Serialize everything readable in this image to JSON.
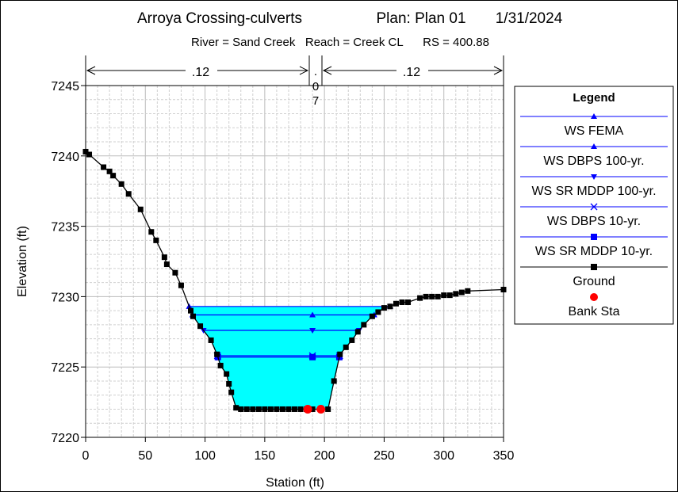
{
  "header": {
    "project": "Arroya Crossing-culverts",
    "plan": "Plan: Plan 01",
    "date": "1/31/2024",
    "location": "River = Sand Creek   Reach = Creek CL      RS = 400.88"
  },
  "mannings": {
    "left": ".12",
    "channel_line1": ".",
    "channel_line2": "0",
    "channel_line3": "7",
    "right": ".12"
  },
  "legend": {
    "title": "Legend",
    "items": [
      {
        "label": "WS FEMA",
        "marker": "triangle-up",
        "color": "#0000ff"
      },
      {
        "label": "WS DBPS 100-yr.",
        "marker": "triangle-up",
        "color": "#0000ff"
      },
      {
        "label": "WS SR MDDP 100-yr.",
        "marker": "triangle-down",
        "color": "#0000ff"
      },
      {
        "label": "WS DBPS 10-yr.",
        "marker": "x",
        "color": "#0000ff"
      },
      {
        "label": "WS SR MDDP 10-yr.",
        "marker": "square",
        "color": "#0000ff"
      },
      {
        "label": "Ground",
        "marker": "square",
        "color": "#000000"
      },
      {
        "label": "Bank Sta",
        "marker": "circle",
        "color": "#ff0000"
      }
    ]
  },
  "chart_data": {
    "type": "line",
    "title": "Arroya Crossing-culverts",
    "xlabel": "Station (ft)",
    "ylabel": "Elevation (ft)",
    "xlim": [
      0,
      350
    ],
    "ylim": [
      7220,
      7245
    ],
    "xticks": [
      "0",
      "50",
      "100",
      "150",
      "200",
      "250",
      "300",
      "350"
    ],
    "yticks": [
      "7220",
      "7225",
      "7230",
      "7235",
      "7240",
      "7245"
    ],
    "grid": true,
    "legend_position": "right",
    "colors": {
      "water": "#00ffff",
      "ws_line": "#0000ff",
      "ground": "#000000",
      "bank": "#ff0000"
    },
    "ground": [
      [
        0,
        7240.3
      ],
      [
        3,
        7240.1
      ],
      [
        15,
        7239.2
      ],
      [
        20,
        7238.9
      ],
      [
        23,
        7238.6
      ],
      [
        30,
        7238.0
      ],
      [
        36,
        7237.3
      ],
      [
        46,
        7236.2
      ],
      [
        55,
        7234.6
      ],
      [
        59,
        7234.0
      ],
      [
        66,
        7232.8
      ],
      [
        68,
        7232.3
      ],
      [
        75,
        7231.7
      ],
      [
        80,
        7230.8
      ],
      [
        88,
        7229.0
      ],
      [
        90,
        7228.6
      ],
      [
        96,
        7227.9
      ],
      [
        105,
        7226.9
      ],
      [
        110,
        7225.9
      ],
      [
        113,
        7225.1
      ],
      [
        118,
        7224.5
      ],
      [
        120,
        7223.8
      ],
      [
        122,
        7223.2
      ],
      [
        126,
        7222.1
      ],
      [
        130,
        7222.0
      ],
      [
        135,
        7222.0
      ],
      [
        140,
        7222.0
      ],
      [
        145,
        7222.0
      ],
      [
        150,
        7222.0
      ],
      [
        155,
        7222.0
      ],
      [
        160,
        7222.0
      ],
      [
        165,
        7222.0
      ],
      [
        170,
        7222.0
      ],
      [
        175,
        7222.0
      ],
      [
        180,
        7222.0
      ],
      [
        185,
        7222.0
      ],
      [
        190,
        7222.0
      ],
      [
        197,
        7222.0
      ],
      [
        203,
        7222.0
      ],
      [
        208,
        7224.0
      ],
      [
        213,
        7225.9
      ],
      [
        218,
        7226.4
      ],
      [
        223,
        7226.9
      ],
      [
        228,
        7227.5
      ],
      [
        233,
        7228.0
      ],
      [
        240,
        7228.6
      ],
      [
        245,
        7228.9
      ],
      [
        250,
        7229.2
      ],
      [
        255,
        7229.3
      ],
      [
        260,
        7229.5
      ],
      [
        265,
        7229.6
      ],
      [
        270,
        7229.6
      ],
      [
        280,
        7229.9
      ],
      [
        285,
        7230.0
      ],
      [
        290,
        7230.0
      ],
      [
        295,
        7230.0
      ],
      [
        300,
        7230.1
      ],
      [
        305,
        7230.1
      ],
      [
        310,
        7230.2
      ],
      [
        315,
        7230.3
      ],
      [
        320,
        7230.4
      ],
      [
        350,
        7230.5
      ]
    ],
    "bank_stations": [
      [
        186,
        7222.0
      ],
      [
        197,
        7222.0
      ]
    ],
    "series": [
      {
        "name": "WS FEMA",
        "elevation": 7229.3,
        "marker": "triangle-up",
        "marker_x": null
      },
      {
        "name": "WS DBPS 100-yr.",
        "elevation": 7228.7,
        "marker": "triangle-up",
        "marker_x": 190
      },
      {
        "name": "WS SR MDDP 100-yr.",
        "elevation": 7227.6,
        "marker": "triangle-down",
        "marker_x": 190
      },
      {
        "name": "WS DBPS 10-yr.",
        "elevation": 7225.8,
        "marker": "x",
        "marker_x": 190
      },
      {
        "name": "WS SR MDDP 10-yr.",
        "elevation": 7225.7,
        "marker": "square",
        "marker_x": 190
      }
    ],
    "mannings_breaks": [
      186,
      197
    ]
  }
}
